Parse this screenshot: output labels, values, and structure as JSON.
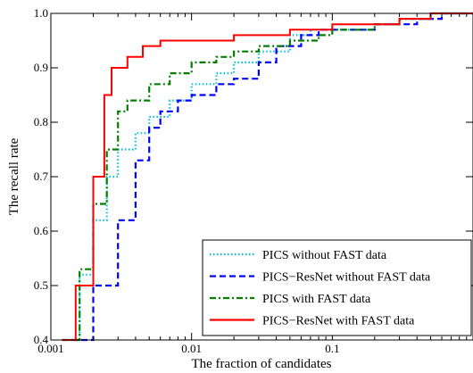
{
  "chart_data": {
    "type": "line",
    "xlabel": "The fraction of candidates",
    "ylabel": "The recall rate",
    "xscale": "log",
    "xlim": [
      0.001,
      1
    ],
    "ylim": [
      0.4,
      1.0
    ],
    "x_ticks": [
      {
        "value": 0.001,
        "label": "0.001"
      },
      {
        "value": 0.01,
        "label": "0.01"
      },
      {
        "value": 0.1,
        "label": "0.1"
      }
    ],
    "y_ticks": [
      {
        "value": 0.4,
        "label": "0.4"
      },
      {
        "value": 0.5,
        "label": "0.5"
      },
      {
        "value": 0.6,
        "label": "0.6"
      },
      {
        "value": 0.7,
        "label": "0.7"
      },
      {
        "value": 0.8,
        "label": "0.8"
      },
      {
        "value": 0.9,
        "label": "0.9"
      },
      {
        "value": 1.0,
        "label": "1.0"
      }
    ],
    "grid": false,
    "legend_position": "bottom-right",
    "series": [
      {
        "name": "PICS without FAST data",
        "color": "#00bfd8",
        "dash": "dotted",
        "points": [
          [
            0.0012,
            0.4
          ],
          [
            0.0016,
            0.52
          ],
          [
            0.002,
            0.62
          ],
          [
            0.0025,
            0.7
          ],
          [
            0.003,
            0.75
          ],
          [
            0.004,
            0.78
          ],
          [
            0.005,
            0.81
          ],
          [
            0.007,
            0.84
          ],
          [
            0.01,
            0.87
          ],
          [
            0.015,
            0.89
          ],
          [
            0.02,
            0.91
          ],
          [
            0.03,
            0.93
          ],
          [
            0.05,
            0.96
          ],
          [
            0.07,
            0.97
          ],
          [
            0.1,
            0.97
          ],
          [
            0.2,
            0.98
          ],
          [
            0.3,
            0.99
          ],
          [
            0.5,
            1.0
          ],
          [
            1.0,
            1.0
          ]
        ]
      },
      {
        "name": "PICS−ResNet without FAST data",
        "color": "#0000ff",
        "dash": "dashed",
        "points": [
          [
            0.0014,
            0.4
          ],
          [
            0.002,
            0.5
          ],
          [
            0.003,
            0.62
          ],
          [
            0.004,
            0.73
          ],
          [
            0.005,
            0.79
          ],
          [
            0.006,
            0.82
          ],
          [
            0.008,
            0.84
          ],
          [
            0.01,
            0.85
          ],
          [
            0.015,
            0.87
          ],
          [
            0.02,
            0.88
          ],
          [
            0.03,
            0.91
          ],
          [
            0.04,
            0.94
          ],
          [
            0.06,
            0.96
          ],
          [
            0.08,
            0.97
          ],
          [
            0.1,
            0.97
          ],
          [
            0.2,
            0.98
          ],
          [
            0.3,
            0.98
          ],
          [
            0.4,
            0.99
          ],
          [
            0.6,
            1.0
          ],
          [
            1.0,
            1.0
          ]
        ]
      },
      {
        "name": "PICS with FAST data",
        "color": "#008000",
        "dash": "dashdot",
        "points": [
          [
            0.0012,
            0.4
          ],
          [
            0.0016,
            0.53
          ],
          [
            0.002,
            0.65
          ],
          [
            0.0025,
            0.75
          ],
          [
            0.003,
            0.82
          ],
          [
            0.0035,
            0.84
          ],
          [
            0.005,
            0.87
          ],
          [
            0.007,
            0.89
          ],
          [
            0.01,
            0.91
          ],
          [
            0.015,
            0.92
          ],
          [
            0.02,
            0.93
          ],
          [
            0.03,
            0.94
          ],
          [
            0.05,
            0.95
          ],
          [
            0.08,
            0.96
          ],
          [
            0.1,
            0.97
          ],
          [
            0.2,
            0.98
          ],
          [
            0.3,
            0.99
          ],
          [
            0.5,
            1.0
          ],
          [
            1.0,
            1.0
          ]
        ]
      },
      {
        "name": "PICS−ResNet with FAST data",
        "color": "#ff0000",
        "dash": "solid",
        "points": [
          [
            0.0012,
            0.4
          ],
          [
            0.0015,
            0.5
          ],
          [
            0.002,
            0.7
          ],
          [
            0.0024,
            0.85
          ],
          [
            0.0027,
            0.9
          ],
          [
            0.0035,
            0.92
          ],
          [
            0.0045,
            0.94
          ],
          [
            0.006,
            0.95
          ],
          [
            0.01,
            0.95
          ],
          [
            0.02,
            0.96
          ],
          [
            0.05,
            0.97
          ],
          [
            0.1,
            0.98
          ],
          [
            0.2,
            0.98
          ],
          [
            0.3,
            0.99
          ],
          [
            0.5,
            1.0
          ],
          [
            1.0,
            1.0
          ]
        ]
      }
    ]
  }
}
